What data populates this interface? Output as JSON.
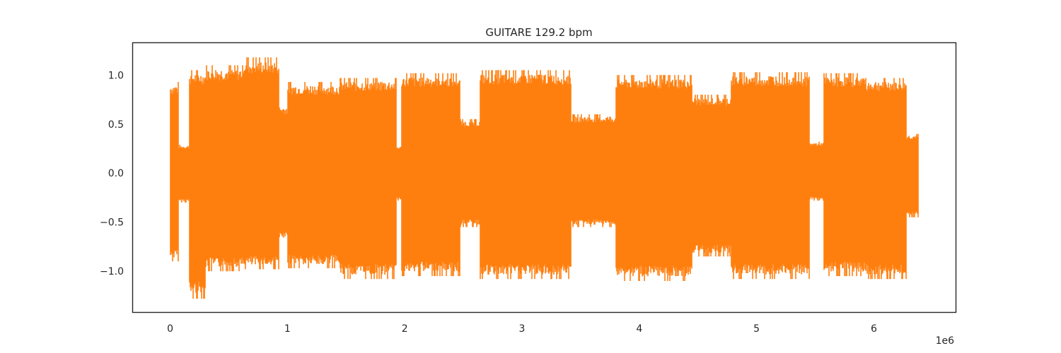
{
  "chart_data": {
    "type": "line",
    "title": "GUITARE 129.2 bpm",
    "xlabel": "",
    "ylabel": "",
    "x_offset_label": "1e6",
    "xlim": [
      -0.32,
      6.7
    ],
    "ylim": [
      -1.42,
      1.33
    ],
    "x_ticks": [
      0,
      1,
      2,
      3,
      4,
      5,
      6
    ],
    "x_tick_labels": [
      "0",
      "1",
      "2",
      "3",
      "4",
      "5",
      "6"
    ],
    "y_ticks": [
      1.0,
      0.5,
      0.0,
      -0.5,
      -1.0
    ],
    "y_tick_labels": [
      "1.0",
      "0.5",
      "0.0",
      "−0.5",
      "−1.0"
    ],
    "grid": false,
    "legend": "none",
    "series": [
      {
        "color": "#ff7f0e",
        "segments": [
          {
            "x_start": 0.0,
            "x_end": 0.07,
            "upper": 0.93,
            "lower": -0.9
          },
          {
            "x_start": 0.07,
            "x_end": 0.16,
            "upper": 0.29,
            "lower": -0.3
          },
          {
            "x_start": 0.16,
            "x_end": 0.3,
            "upper": 1.05,
            "lower": -1.28
          },
          {
            "x_start": 0.3,
            "x_end": 0.62,
            "upper": 1.1,
            "lower": -1.0
          },
          {
            "x_start": 0.62,
            "x_end": 0.93,
            "upper": 1.18,
            "lower": -0.98
          },
          {
            "x_start": 0.93,
            "x_end": 1.0,
            "upper": 0.7,
            "lower": -0.7
          },
          {
            "x_start": 1.0,
            "x_end": 1.45,
            "upper": 0.93,
            "lower": -0.97
          },
          {
            "x_start": 1.45,
            "x_end": 1.93,
            "upper": 0.97,
            "lower": -1.08
          },
          {
            "x_start": 1.93,
            "x_end": 1.97,
            "upper": 0.28,
            "lower": -0.28
          },
          {
            "x_start": 1.97,
            "x_end": 2.47,
            "upper": 1.02,
            "lower": -1.05
          },
          {
            "x_start": 2.47,
            "x_end": 2.64,
            "upper": 0.55,
            "lower": -0.55
          },
          {
            "x_start": 2.64,
            "x_end": 3.42,
            "upper": 1.05,
            "lower": -1.08
          },
          {
            "x_start": 3.42,
            "x_end": 3.8,
            "upper": 0.6,
            "lower": -0.55
          },
          {
            "x_start": 3.8,
            "x_end": 4.45,
            "upper": 1.0,
            "lower": -1.1
          },
          {
            "x_start": 4.45,
            "x_end": 4.78,
            "upper": 0.8,
            "lower": -0.85
          },
          {
            "x_start": 4.78,
            "x_end": 5.45,
            "upper": 1.03,
            "lower": -1.08
          },
          {
            "x_start": 5.45,
            "x_end": 5.57,
            "upper": 0.32,
            "lower": -0.28
          },
          {
            "x_start": 5.57,
            "x_end": 5.93,
            "upper": 1.02,
            "lower": -1.05
          },
          {
            "x_start": 5.93,
            "x_end": 6.28,
            "upper": 0.97,
            "lower": -1.08
          },
          {
            "x_start": 6.28,
            "x_end": 6.38,
            "upper": 0.4,
            "lower": -0.45
          }
        ]
      }
    ]
  }
}
